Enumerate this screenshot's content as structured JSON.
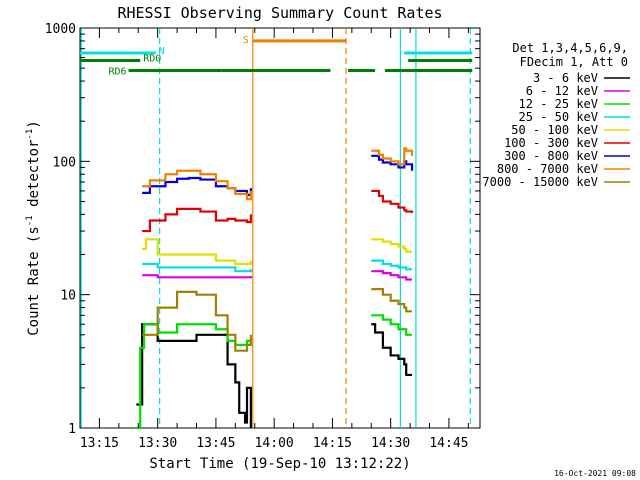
{
  "chart_data": {
    "type": "line",
    "title": "RHESSI Observing Summary Count Rates",
    "xlabel": "Start Time (19-Sep-10 13:12:22)",
    "ylabel": "Count Rate (s",
    "ylabel_sup1": "-1",
    "ylabel_mid": " detector",
    "ylabel_sup2": "-1",
    "ylabel_end": ")",
    "yscale": "log",
    "ylim": [
      1,
      1000
    ],
    "x_unit": "minutes of day",
    "xlim": [
      790,
      893
    ],
    "x_ticks": [
      {
        "value": 795,
        "label": "13:15"
      },
      {
        "value": 810,
        "label": "13:30"
      },
      {
        "value": 825,
        "label": "13:45"
      },
      {
        "value": 840,
        "label": "14:00"
      },
      {
        "value": 855,
        "label": "14:15"
      },
      {
        "value": 870,
        "label": "14:30"
      },
      {
        "value": 885,
        "label": "14:45"
      }
    ],
    "y_ticks": [
      {
        "value": 1,
        "label": "1"
      },
      {
        "value": 10,
        "label": "10"
      },
      {
        "value": 100,
        "label": "100"
      },
      {
        "value": 1000,
        "label": "1000"
      }
    ],
    "legend_title": [
      "Det 1,3,4,5,6,9,",
      "FDecim 1, Att 0"
    ],
    "legend_position": "right",
    "series": [
      {
        "name": "3 - 6 keV",
        "color": "#000000",
        "segments": [
          {
            "x": [
              804.5,
              806,
              810,
              815,
              820,
              825,
              828,
              830,
              831,
              832.5,
              833,
              834
            ],
            "y": [
              1.5,
              6,
              4.5,
              4.5,
              5,
              5,
              3,
              2.2,
              1.3,
              1.1,
              2,
              1
            ]
          },
          {
            "x": [
              865,
              866,
              868,
              870,
              872,
              873.5,
              874,
              875.5
            ],
            "y": [
              6,
              5.2,
              4,
              3.5,
              3.3,
              3,
              2.5,
              2.5
            ]
          }
        ]
      },
      {
        "name": "6 - 12 keV",
        "color": "#e000e0",
        "segments": [
          {
            "x": [
              806,
              810,
              815,
              820,
              825,
              828,
              830,
              833,
              834
            ],
            "y": [
              14,
              13.5,
              13.5,
              13.5,
              13.5,
              13.5,
              13.5,
              13.5,
              13.8
            ]
          },
          {
            "x": [
              865,
              868,
              870,
              872,
              873.5,
              874,
              875.5
            ],
            "y": [
              15,
              14.5,
              14,
              13.5,
              13.5,
              13,
              13
            ]
          }
        ]
      },
      {
        "name": "12 - 25 keV",
        "color": "#00e000",
        "segments": [
          {
            "x": [
              804.5,
              805.5,
              806.5,
              810,
              815,
              820,
              825,
              828,
              830,
              833,
              834
            ],
            "y": [
              1,
              4,
              6,
              5.2,
              6,
              6,
              5.5,
              4.5,
              4.2,
              4.5,
              4.5
            ]
          },
          {
            "x": [
              865,
              868,
              870,
              872,
              873.5,
              874,
              875.5
            ],
            "y": [
              7,
              6.5,
              6,
              5.5,
              5.5,
              5,
              5
            ]
          }
        ]
      },
      {
        "name": "25 - 50 keV",
        "color": "#00e0e0",
        "segments": [
          {
            "x": [
              806,
              810,
              815,
              820,
              825,
              828,
              830,
              833,
              834
            ],
            "y": [
              17,
              16,
              16,
              16,
              16,
              16,
              15,
              15,
              15.5
            ]
          },
          {
            "x": [
              865,
              868,
              870,
              872,
              873.5,
              874,
              875.5
            ],
            "y": [
              18,
              17,
              16.5,
              16,
              16,
              15.5,
              15.5
            ]
          }
        ]
      },
      {
        "name": "50 - 100 keV",
        "color": "#e0e000",
        "segments": [
          {
            "x": [
              806,
              807,
              810,
              815,
              820,
              825,
              828,
              830,
              833,
              834
            ],
            "y": [
              22,
              26,
              20,
              20,
              20,
              18,
              18,
              17,
              17,
              18
            ]
          },
          {
            "x": [
              865,
              868,
              870,
              872,
              873.5,
              874,
              875.5
            ],
            "y": [
              26,
              25,
              24,
              23,
              22,
              21,
              21
            ]
          }
        ]
      },
      {
        "name": "100 - 300 keV",
        "color": "#e00000",
        "segments": [
          {
            "x": [
              806,
              808,
              812,
              815,
              818,
              821,
              825,
              828,
              830,
              833,
              834
            ],
            "y": [
              30,
              36,
              40,
              44,
              44,
              42,
              36,
              37,
              36,
              35,
              40
            ]
          },
          {
            "x": [
              865,
              867,
              868,
              870,
              872,
              873.5,
              874,
              875.5
            ],
            "y": [
              60,
              55,
              50,
              48,
              45,
              43,
              42,
              41
            ]
          }
        ]
      },
      {
        "name": "300 - 800 keV",
        "color": "#0000e0",
        "segments": [
          {
            "x": [
              806,
              808,
              812,
              815,
              818,
              821,
              825,
              828,
              830,
              833,
              834
            ],
            "y": [
              58,
              65,
              70,
              74,
              75,
              73,
              65,
              63,
              60,
              56,
              63
            ]
          },
          {
            "x": [
              865,
              867,
              868,
              870,
              872,
              873.5,
              874,
              875.5
            ],
            "y": [
              110,
              103,
              98,
              95,
              90,
              100,
              95,
              85
            ]
          }
        ]
      },
      {
        "name": "800 - 7000 keV",
        "color": "#f08000",
        "segments": [
          {
            "x": [
              806,
              808,
              812,
              815,
              818,
              821,
              825,
              828,
              830,
              833,
              834
            ],
            "y": [
              65,
              72,
              80,
              85,
              85,
              80,
              71,
              63,
              57,
              52,
              60
            ]
          },
          {
            "x": [
              865,
              867,
              868,
              870,
              872,
              873.5,
              874,
              875.5
            ],
            "y": [
              120,
              112,
              105,
              100,
              95,
              125,
              120,
              110
            ]
          }
        ]
      },
      {
        "name": "7000 - 15000 keV",
        "color": "#a08000",
        "segments": [
          {
            "x": [
              806,
              810,
              815,
              820,
              825,
              828,
              830,
              833,
              834
            ],
            "y": [
              5,
              8,
              10.5,
              10,
              7,
              5,
              3.8,
              4.2,
              5
            ]
          },
          {
            "x": [
              865,
              868,
              870,
              872,
              873.5,
              874,
              875.5
            ],
            "y": [
              11,
              10,
              9,
              8.5,
              8,
              7.5,
              7.5
            ]
          }
        ]
      }
    ],
    "flag_bars": [
      {
        "label": "N",
        "color": "#00e0e0",
        "level": 650,
        "segments": [
          [
            790,
            809.5
          ],
          [
            873.5,
            891
          ]
        ]
      },
      {
        "label": "RD0",
        "color": "#008000",
        "level": 570,
        "segments": [
          [
            790,
            805.5
          ],
          [
            874.5,
            891
          ]
        ]
      },
      {
        "label": "RD6",
        "color": "#008000",
        "level": 480,
        "segments": [
          [
            802.5,
            826.5
          ],
          [
            826.5,
            854.5
          ],
          [
            859,
            866
          ],
          [
            868.5,
            891
          ]
        ]
      },
      {
        "label": "S",
        "color": "#f08000",
        "level": 800,
        "segments": [
          [
            834.5,
            858.5
          ]
        ]
      }
    ],
    "markers": [
      {
        "x": 790.3,
        "color": "#00e0e0",
        "style": "solid"
      },
      {
        "x": 810.5,
        "color": "#00e0e0",
        "style": "dashed"
      },
      {
        "x": 834.5,
        "color": "#f08000",
        "style": "solid"
      },
      {
        "x": 858.5,
        "color": "#f08000",
        "style": "dashed"
      },
      {
        "x": 872.5,
        "color": "#00e0e0",
        "style": "solid"
      },
      {
        "x": 876.5,
        "color": "#00e0e0",
        "style": "solid"
      },
      {
        "x": 890.5,
        "color": "#00e0e0",
        "style": "dashed"
      }
    ],
    "footer": "16-Oct-2021 09:08"
  }
}
